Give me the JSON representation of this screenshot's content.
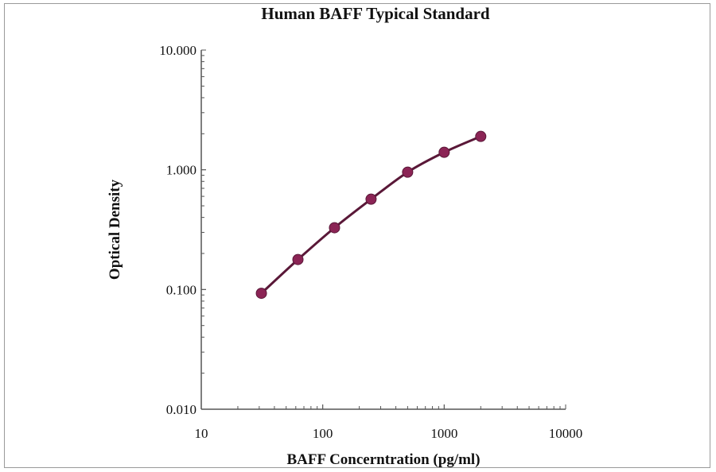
{
  "chart_data": {
    "type": "line",
    "title": "Human BAFF Typical Standard",
    "xlabel": "BAFF Concerntration (pg/ml)",
    "ylabel": "Optical Density",
    "x_scale": "log",
    "y_scale": "log",
    "xlim": [
      10,
      10000
    ],
    "ylim": [
      0.01,
      10
    ],
    "x_ticks": [
      "10",
      "100",
      "1000",
      "10000"
    ],
    "y_ticks": [
      "0.010",
      "0.100",
      "1.000",
      "10.000"
    ],
    "grid": false,
    "legend": "none",
    "series": [
      {
        "x": [
          31.25,
          62.5,
          125,
          250,
          500,
          1000,
          2000
        ],
        "y": [
          0.093,
          0.178,
          0.328,
          0.568,
          0.955,
          1.4,
          1.9
        ],
        "line_color": "#5a1838",
        "marker_color": "#8b2455"
      }
    ]
  }
}
